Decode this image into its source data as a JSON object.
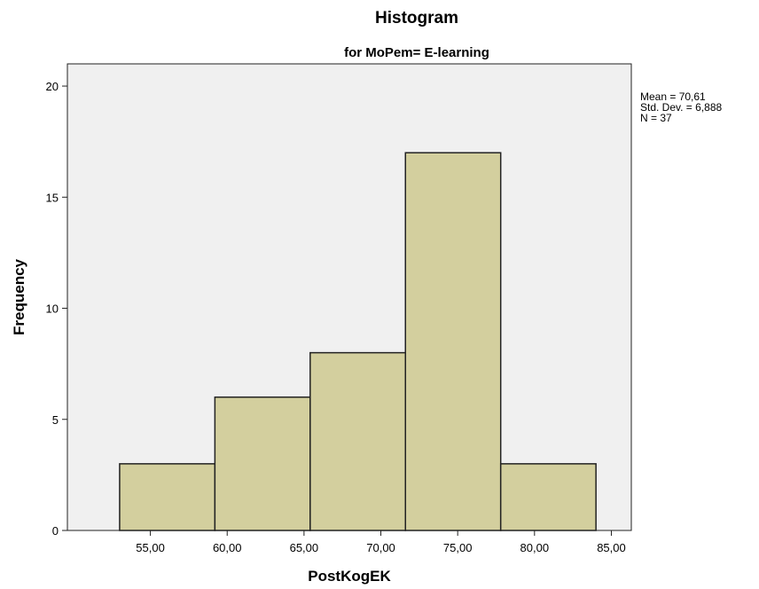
{
  "chart_data": {
    "type": "bar",
    "title": "Histogram",
    "subtitle": "for MoPem= E-learning",
    "xlabel": "PostKogEK",
    "ylabel": "Frequency",
    "bins": [
      {
        "start": 53.0,
        "end": 59.2,
        "value": 3
      },
      {
        "start": 59.2,
        "end": 65.4,
        "value": 6
      },
      {
        "start": 65.4,
        "end": 71.6,
        "value": 8
      },
      {
        "start": 71.6,
        "end": 77.8,
        "value": 17
      },
      {
        "start": 77.8,
        "end": 84.0,
        "value": 3
      }
    ],
    "xlim": [
      49.6,
      86.3
    ],
    "ylim": [
      0,
      21
    ],
    "x_ticks": [
      55,
      60,
      65,
      70,
      75,
      80,
      85
    ],
    "x_tick_labels": [
      "55,00",
      "60,00",
      "65,00",
      "70,00",
      "75,00",
      "80,00",
      "85,00"
    ],
    "y_ticks": [
      0,
      5,
      10,
      15,
      20
    ],
    "y_tick_labels": [
      "0",
      "5",
      "10",
      "15",
      "20"
    ],
    "stats": [
      "Mean = 70,61",
      "Std. Dev. = 6,888",
      "N = 37"
    ],
    "grid": false,
    "colors": {
      "bar_fill": "#d3cf9e",
      "bar_stroke": "#222222",
      "plot_background": "#f0f0f0",
      "frame": "#222222"
    }
  }
}
